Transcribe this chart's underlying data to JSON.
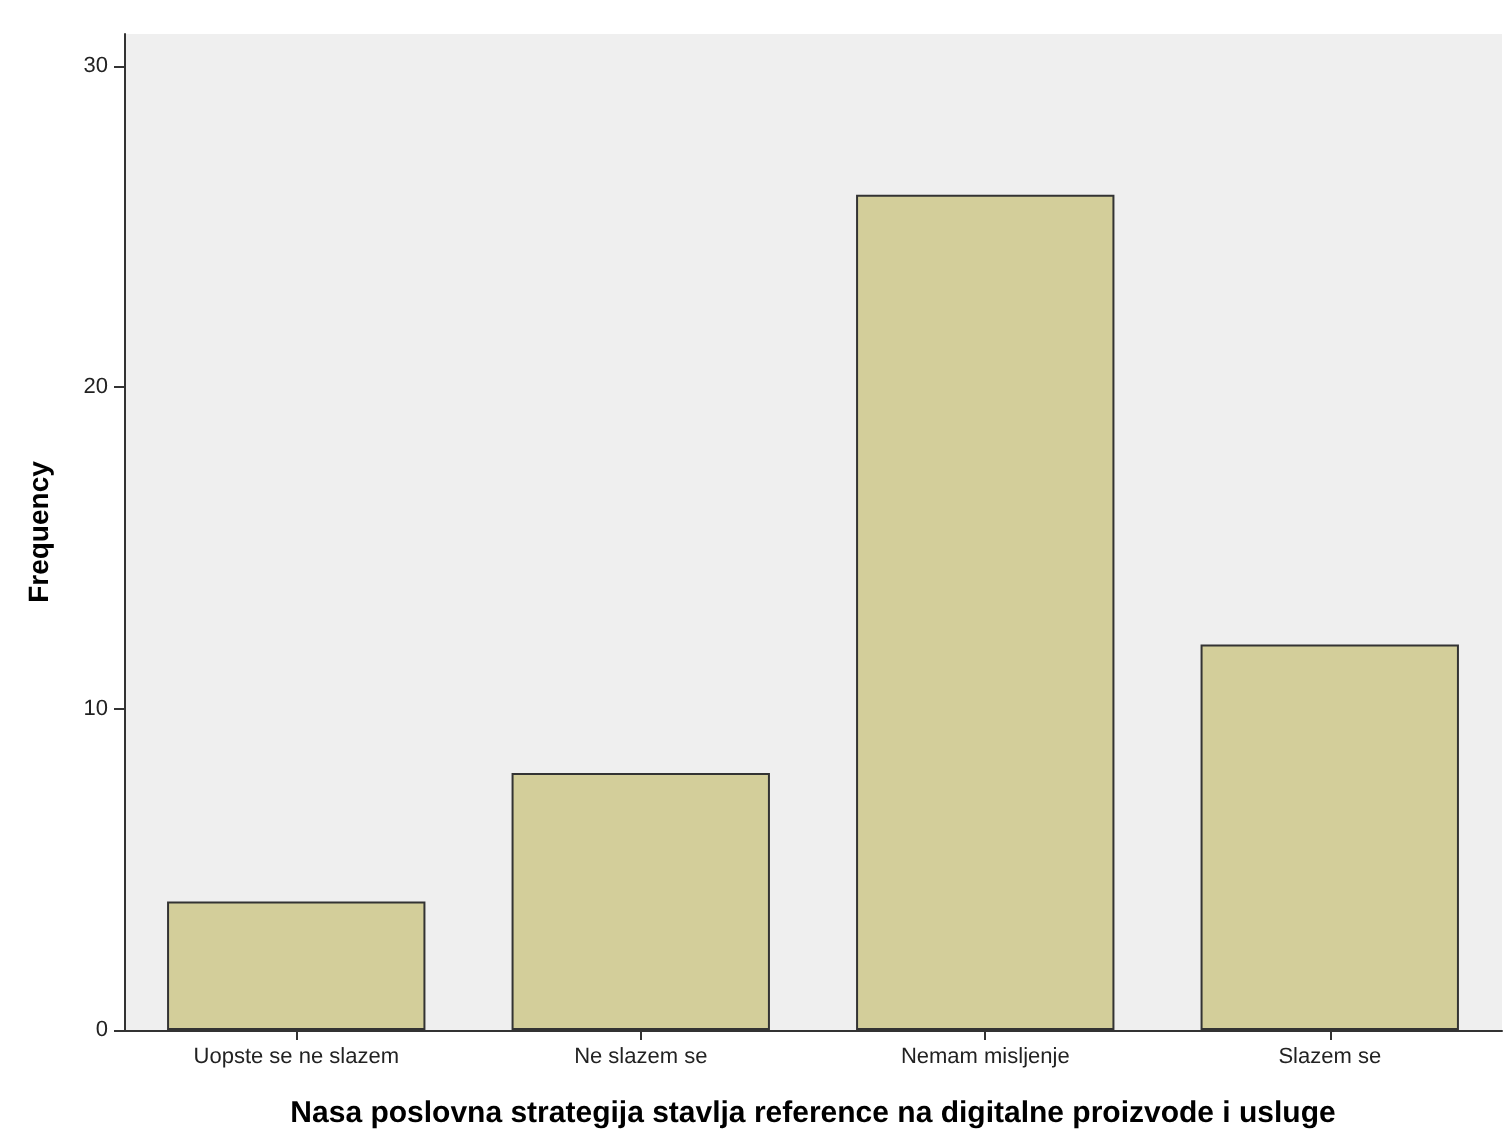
{
  "chart_data": {
    "type": "bar",
    "xlabel": "Nasa poslovna strategija stavlja reference na digitalne proizvode i usluge",
    "ylabel": "Frequency",
    "categories": [
      "Uopste se ne slazem",
      "Ne slazem se",
      "Nemam misljenje",
      "Slazem se"
    ],
    "values": [
      4,
      8,
      26,
      12
    ],
    "color": "#d3ce9a",
    "ylim": [
      0,
      31
    ],
    "yticks": [
      0,
      10,
      20,
      30
    ],
    "grid": false
  }
}
